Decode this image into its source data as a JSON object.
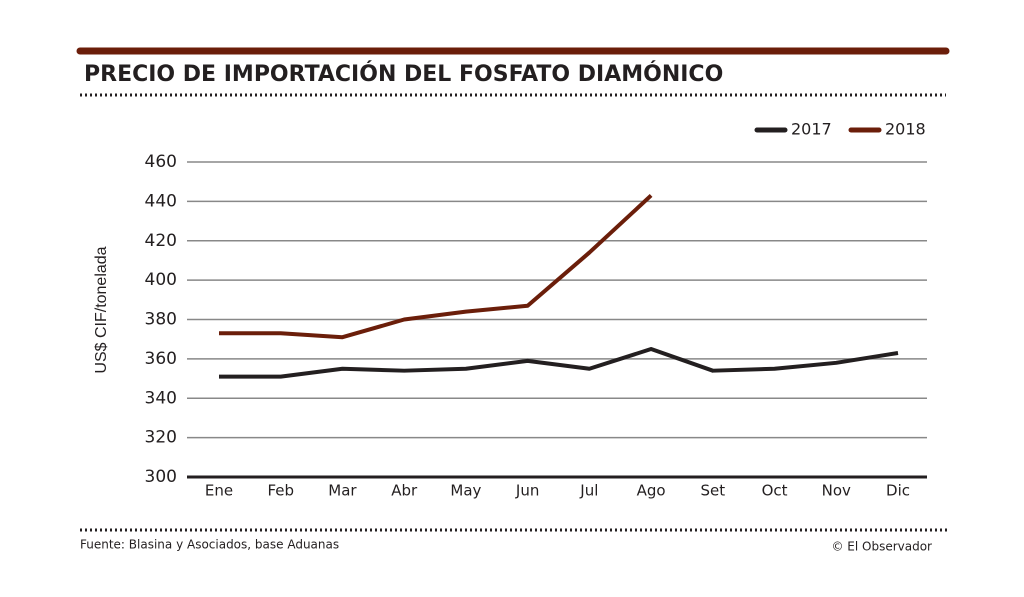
{
  "chart_data": {
    "type": "line",
    "title": "PRECIO DE IMPORTACIÓN DEL FOSFATO DIAMÓNICO",
    "y_label": "US$ CIF/tonelada",
    "source": "Fuente: Blasina y Asociados, base Aduanas",
    "credit": "© El Observador",
    "categories": [
      "Ene",
      "Feb",
      "Mar",
      "Abr",
      "May",
      "Jun",
      "Jul",
      "Ago",
      "Set",
      "Oct",
      "Nov",
      "Dic"
    ],
    "series": [
      {
        "name": "2017",
        "color": "#231f20",
        "values": [
          351,
          351,
          355,
          354,
          355,
          359,
          355,
          365,
          354,
          355,
          358,
          363
        ]
      },
      {
        "name": "2018",
        "color": "#6b1e0a",
        "values": [
          373,
          373,
          371,
          380,
          384,
          387,
          414,
          443,
          null,
          null,
          null,
          null
        ]
      }
    ],
    "ylim": [
      300,
      460
    ],
    "yticks": [
      300,
      320,
      340,
      360,
      380,
      400,
      420,
      440,
      460
    ],
    "grid": true,
    "legend": "top-right"
  }
}
